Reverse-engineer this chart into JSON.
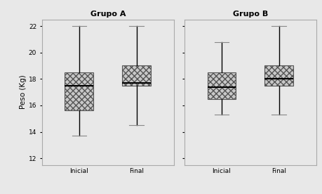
{
  "title_A": "Grupo A",
  "title_B": "Grupo B",
  "ylabel": "Peso (Kg)",
  "xlabel_labels": [
    "Inicial",
    "Final"
  ],
  "ylim": [
    11.5,
    22.5
  ],
  "yticks": [
    12,
    14,
    16,
    18,
    20,
    22
  ],
  "background_color": "#e8e8e8",
  "plot_bg_color": "#e8e8e8",
  "box_facecolor": "#c8c8c8",
  "box_hatch": "xxxx",
  "whisker_color": "#000000",
  "median_color": "#000000",
  "cap_color": "#888888",
  "groups": {
    "A": {
      "Inicial": {
        "whislo": 13.7,
        "q1": 15.6,
        "med": 17.5,
        "q3": 18.5,
        "whishi": 22.0
      },
      "Final": {
        "whislo": 14.5,
        "q1": 17.5,
        "med": 17.7,
        "q3": 19.0,
        "whishi": 22.0
      }
    },
    "B": {
      "Inicial": {
        "whislo": 15.3,
        "q1": 16.5,
        "med": 17.4,
        "q3": 18.5,
        "whishi": 20.8
      },
      "Final": {
        "whislo": 15.3,
        "q1": 17.5,
        "med": 18.0,
        "q3": 19.0,
        "whishi": 22.0
      }
    }
  }
}
